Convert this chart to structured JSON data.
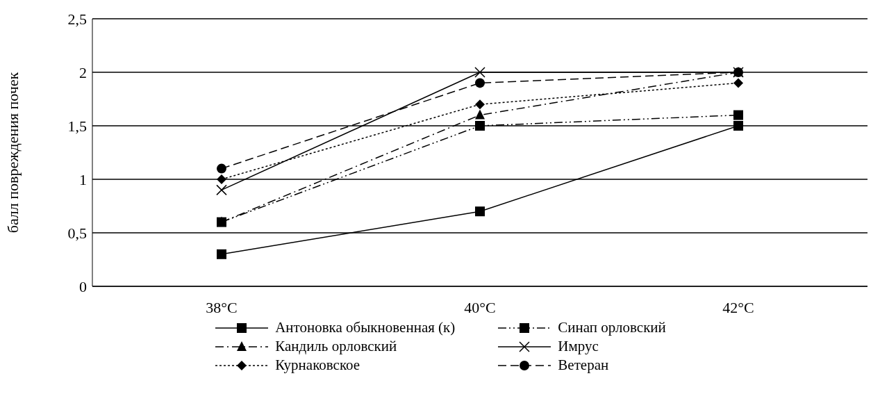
{
  "chart_data": {
    "type": "line",
    "ylabel": "балл повреждения почек",
    "categories": [
      "38°C",
      "40°C",
      "42°C"
    ],
    "series": [
      {
        "name": "Антоновка обыкновенная (к)",
        "color": "#000000",
        "marker": "square",
        "line_style": "solid",
        "values": [
          0.3,
          0.7,
          1.5
        ]
      },
      {
        "name": "Синап орловский",
        "color": "#000000",
        "marker": "square",
        "line_style": "dashdotdot",
        "values": [
          0.6,
          1.5,
          1.6
        ]
      },
      {
        "name": "Кандиль орловский",
        "color": "#000000",
        "marker": "triangle",
        "line_style": "dashdot",
        "values": [
          0.6,
          1.6,
          2.0
        ]
      },
      {
        "name": "Имрус",
        "color": "#000000",
        "marker": "cross",
        "line_style": "solid",
        "values": [
          0.9,
          2.0,
          2.0
        ]
      },
      {
        "name": "Курнаковское",
        "color": "#000000",
        "marker": "diamond",
        "line_style": "dotted",
        "values": [
          1.0,
          1.7,
          1.9
        ]
      },
      {
        "name": "Ветеран",
        "color": "#000000",
        "marker": "circle",
        "line_style": "dashed",
        "values": [
          1.1,
          1.9,
          2.0
        ]
      }
    ],
    "ylim": [
      0,
      2.5
    ],
    "yticks": [
      0,
      {
        "value": 0.5,
        "label": "0,5"
      },
      1,
      {
        "value": 1.5,
        "label": "1,5"
      },
      2,
      {
        "value": 2.5,
        "label": "2,5"
      }
    ],
    "grid": "y",
    "legend": "bottom"
  }
}
